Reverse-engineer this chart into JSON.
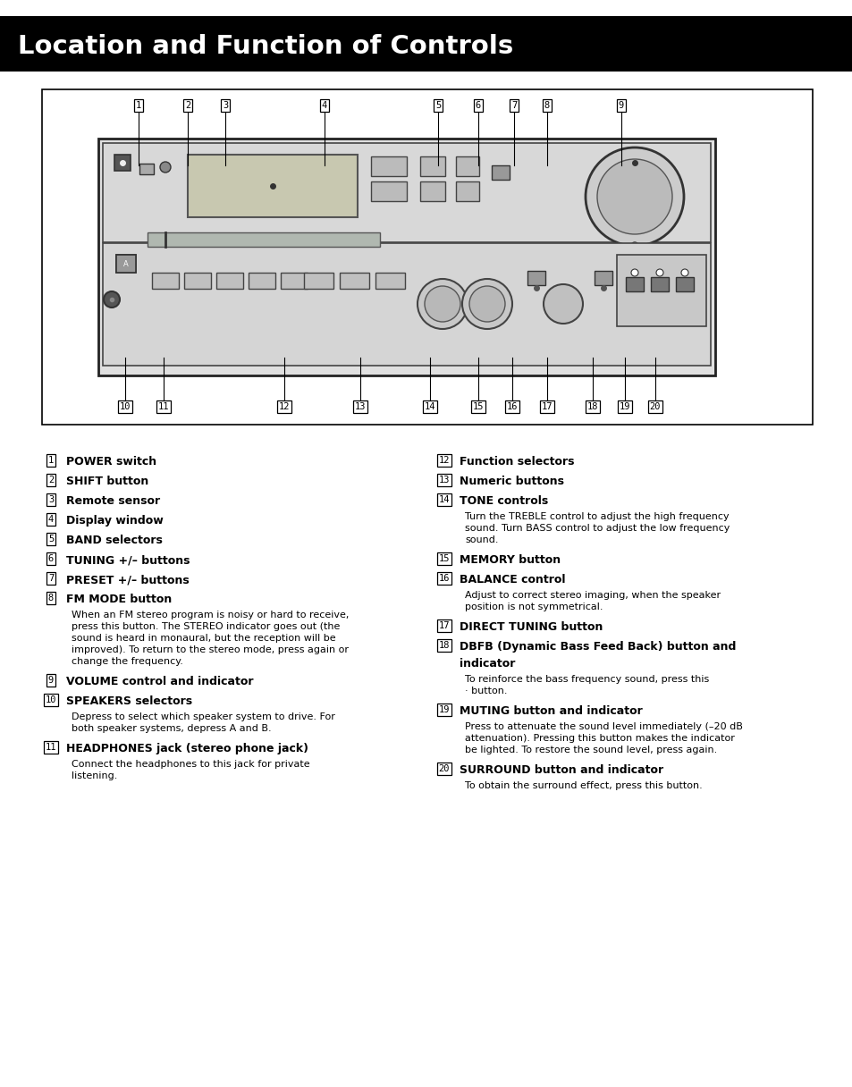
{
  "title": "Location and Function of Controls",
  "title_bg": "#000000",
  "title_color": "#ffffff",
  "page_bg": "#ffffff",
  "left_items": [
    {
      "num": "1",
      "bold": "POWER switch",
      "body": []
    },
    {
      "num": "2",
      "bold": "SHIFT button",
      "body": []
    },
    {
      "num": "3",
      "bold": "Remote sensor",
      "body": []
    },
    {
      "num": "4",
      "bold": "Display window",
      "body": []
    },
    {
      "num": "5",
      "bold": "BAND selectors",
      "body": []
    },
    {
      "num": "6",
      "bold": "TUNING +/– buttons",
      "body": []
    },
    {
      "num": "7",
      "bold": "PRESET +/– buttons",
      "body": []
    },
    {
      "num": "8",
      "bold": "FM MODE button",
      "body": [
        "When an FM stereo program is noisy or hard to receive,",
        "press this button. The STEREO indicator goes out (the",
        "sound is heard in monaural, but the reception will be",
        "improved). To return to the stereo mode, press again or",
        "change the frequency."
      ]
    },
    {
      "num": "9",
      "bold": "VOLUME control and indicator",
      "body": []
    },
    {
      "num": "10",
      "bold": "SPEAKERS selectors",
      "body": [
        "Depress to select which speaker system to drive. For",
        "both speaker systems, depress A and B."
      ]
    },
    {
      "num": "11",
      "bold": "HEADPHONES jack (stereo phone jack)",
      "body": [
        "Connect the headphones to this jack for private",
        "listening."
      ]
    }
  ],
  "right_items": [
    {
      "num": "12",
      "bold": "Function selectors",
      "body": []
    },
    {
      "num": "13",
      "bold": "Numeric buttons",
      "body": []
    },
    {
      "num": "14",
      "bold": "TONE controls",
      "body": [
        "Turn the TREBLE control to adjust the high frequency",
        "sound. Turn BASS control to adjust the low frequency",
        "sound."
      ]
    },
    {
      "num": "15",
      "bold": "MEMORY button",
      "body": []
    },
    {
      "num": "16",
      "bold": "BALANCE control",
      "body": [
        "Adjust to correct stereo imaging, when the speaker",
        "position is not symmetrical."
      ]
    },
    {
      "num": "17",
      "bold": "DIRECT TUNING button",
      "body": []
    },
    {
      "num": "18",
      "bold": "DBFB (Dynamic Bass Feed Back) button and",
      "bold2": "indicator",
      "body": [
        "To reinforce the bass frequency sound, press this",
        "· button."
      ]
    },
    {
      "num": "19",
      "bold": "MUTING button and indicator",
      "body": [
        "Press to attenuate the sound level immediately (–20 dB",
        "attenuation). Pressing this button makes the indicator",
        "be lighted. To restore the sound level, press again."
      ]
    },
    {
      "num": "20",
      "bold": "SURROUND button and indicator",
      "body": [
        "To obtain the surround effect, press this button."
      ]
    }
  ],
  "top_labels": [
    "1",
    "2",
    "3",
    "4",
    "5",
    "6",
    "7",
    "8",
    "9"
  ],
  "top_lx": [
    155,
    210,
    252,
    363,
    490,
    535,
    575,
    612,
    695
  ],
  "bottom_labels": [
    "10",
    "11",
    "12",
    "13",
    "14",
    "15",
    "16",
    "17",
    "18",
    "19",
    "20"
  ],
  "bottom_lx": [
    140,
    183,
    318,
    403,
    481,
    535,
    573,
    612,
    663,
    699,
    733
  ]
}
